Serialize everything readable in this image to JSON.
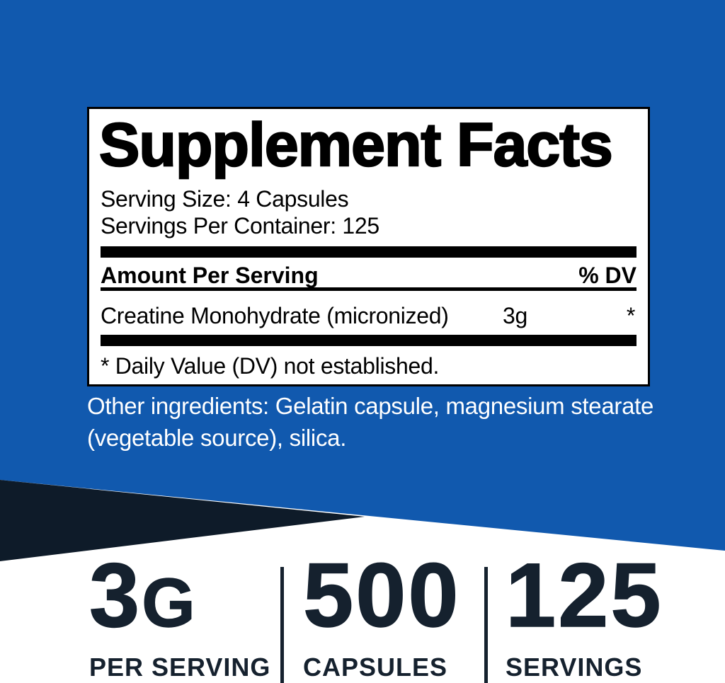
{
  "colors": {
    "blue": "#1159AE",
    "navy": "#15212E",
    "wedge": "#0E1B29",
    "ink": "#000000",
    "paper": "#FFFFFF"
  },
  "supplement_panel": {
    "title": "Supplement Facts",
    "serving_size": "Serving Size: 4 Capsules",
    "servings_per_container": "Servings Per Container: 125",
    "amount_header": "Amount Per Serving",
    "dv_header": "% DV",
    "ingredient_rows": [
      {
        "name": "Creatine Monohydrate (micronized)",
        "amount": "3g",
        "dv": "*"
      }
    ],
    "footnote": "* Daily Value (DV) not established."
  },
  "other_ingredients": {
    "line1": "Other ingredients: Gelatin capsule, magnesium stearate",
    "line2": "(vegetable source), silica."
  },
  "stats": {
    "per_serving": {
      "value": "3",
      "unit": "G",
      "label": "PER SERVING"
    },
    "capsules": {
      "value": "500",
      "label": "CAPSULES"
    },
    "servings": {
      "value": "125",
      "label": "SERVINGS"
    }
  }
}
